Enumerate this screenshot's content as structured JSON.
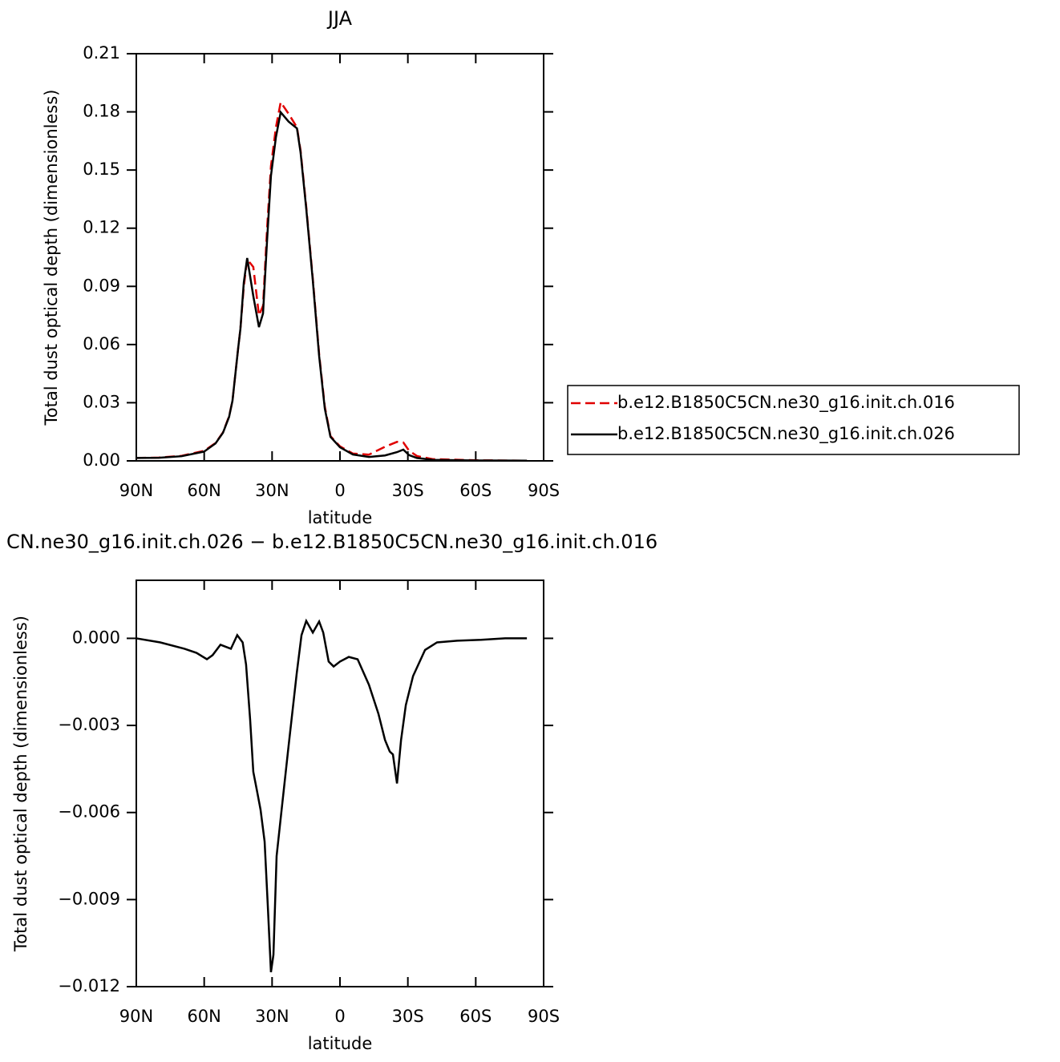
{
  "chart_data": [
    {
      "type": "line",
      "title": "JJA",
      "xlabel": "latitude",
      "ylabel": "Total dust optical depth (dimensionless)",
      "xlim": [
        90,
        -90
      ],
      "xticks": [
        {
          "value": 90,
          "label": "90N"
        },
        {
          "value": 60,
          "label": "60N"
        },
        {
          "value": 30,
          "label": "30N"
        },
        0,
        {
          "value": -30,
          "label": "30S"
        },
        {
          "value": -60,
          "label": "60S"
        },
        {
          "value": -90,
          "label": "90S"
        }
      ],
      "ylim": [
        0,
        0.21
      ],
      "yticks": [
        {
          "value": 0,
          "label": "0.00"
        },
        0.03,
        0.06,
        0.09,
        0.12,
        0.15,
        0.18,
        0.21
      ],
      "legend": "right",
      "x": [
        90,
        80,
        70,
        60,
        55,
        51.7,
        49,
        47.5,
        45,
        44,
        42.5,
        41,
        38.3,
        35.8,
        34,
        32.2,
        30.5,
        28.3,
        26.2,
        22.7,
        19,
        17.4,
        14.9,
        12,
        9.2,
        6.7,
        4.2,
        0,
        -5.7,
        -12.8,
        -19.9,
        -25.2,
        -28,
        -30.5,
        -34,
        -41,
        -60,
        -82.6
      ],
      "series": [
        {
          "name": "b.e12.B1850C5CN.ne30_g16.init.ch.016",
          "color": "#e00000",
          "linestyle": "dashed",
          "values": [
            0.0015,
            0.0017,
            0.0026,
            0.0052,
            0.0092,
            0.0147,
            0.023,
            0.031,
            0.058,
            0.068,
            0.09,
            0.104,
            0.1,
            0.075,
            0.08,
            0.12,
            0.152,
            0.172,
            0.185,
            0.179,
            0.172,
            0.16,
            0.131,
            0.094,
            0.055,
            0.028,
            0.0128,
            0.0075,
            0.0038,
            0.0032,
            0.0073,
            0.0098,
            0.0095,
            0.0053,
            0.0025,
            0.0009,
            0.0003,
            0.0001
          ]
        },
        {
          "name": "b.e12.B1850C5CN.ne30_g16.init.ch.026",
          "color": "#000000",
          "linestyle": "solid",
          "values": [
            0.0015,
            0.0016,
            0.0024,
            0.0048,
            0.009,
            0.0145,
            0.0227,
            0.031,
            0.058,
            0.068,
            0.092,
            0.1046,
            0.085,
            0.069,
            0.076,
            0.114,
            0.147,
            0.167,
            0.1798,
            0.175,
            0.1715,
            0.159,
            0.13,
            0.093,
            0.054,
            0.027,
            0.0124,
            0.007,
            0.0033,
            0.002,
            0.0028,
            0.0045,
            0.0058,
            0.003,
            0.0015,
            0.0005,
            0.0002,
            0.0001
          ]
        }
      ]
    },
    {
      "type": "line",
      "title": "CN.ne30_g16.init.ch.026 − b.e12.B1850C5CN.ne30_g16.init.ch.016",
      "xlabel": "latitude",
      "ylabel": "Total dust optical depth (dimensionless)",
      "xlim": [
        90,
        -90
      ],
      "xticks": [
        {
          "value": 90,
          "label": "90N"
        },
        {
          "value": 60,
          "label": "60N"
        },
        {
          "value": 30,
          "label": "30N"
        },
        0,
        {
          "value": -30,
          "label": "30S"
        },
        {
          "value": -60,
          "label": "60S"
        },
        {
          "value": -90,
          "label": "90S"
        }
      ],
      "ylim": [
        -0.012,
        0.002
      ],
      "yticks": [
        {
          "value": -0.012,
          "label": "−0.012"
        },
        {
          "value": -0.009,
          "label": "−0.009"
        },
        {
          "value": -0.006,
          "label": "−0.006"
        },
        {
          "value": -0.003,
          "label": "−0.003"
        },
        {
          "value": 0,
          "label": "0.000"
        }
      ],
      "x": [
        90,
        79.4,
        68.7,
        63.4,
        58.8,
        56.3,
        52.8,
        48.2,
        45.4,
        43,
        41.5,
        39.7,
        38.3,
        36.8,
        35.1,
        33.3,
        31.9,
        30.5,
        29.4,
        28,
        26.2,
        22.7,
        19.1,
        17,
        14.9,
        12,
        9.2,
        7.4,
        5,
        2.8,
        0,
        -3.9,
        -7.8,
        -12.8,
        -17,
        -19.9,
        -22,
        -23.4,
        -25.2,
        -27,
        -29.1,
        -32.3,
        -37.6,
        -42.9,
        -51.8,
        -62.4,
        -73,
        -82.6
      ],
      "series": [
        {
          "color": "#000000",
          "linestyle": "solid",
          "values": [
            0,
            -0.00014,
            -0.00036,
            -0.0005,
            -0.00072,
            -0.00058,
            -0.00022,
            -0.00036,
            0.00011,
            -0.00014,
            -0.0009,
            -0.0028,
            -0.0046,
            -0.0052,
            -0.0059,
            -0.007,
            -0.0092,
            -0.0115,
            -0.0109,
            -0.0075,
            -0.0062,
            -0.0037,
            -0.0012,
            0.00011,
            0.0006,
            0.0002,
            0.00058,
            0.0002,
            -0.0008,
            -0.00097,
            -0.0008,
            -0.00064,
            -0.00072,
            -0.0016,
            -0.0026,
            -0.0035,
            -0.0039,
            -0.004,
            -0.005,
            -0.0035,
            -0.0023,
            -0.0013,
            -0.0004,
            -0.00014,
            -8e-05,
            -5e-05,
            0,
            0
          ]
        }
      ]
    }
  ]
}
